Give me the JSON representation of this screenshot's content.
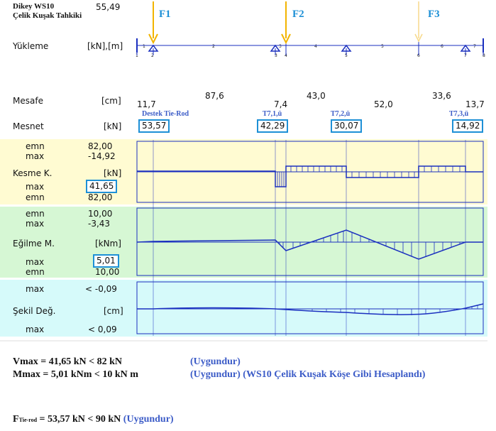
{
  "header": {
    "title_line1": "Dikey WS10",
    "title_line2": "Çelik Kuşak Tahkiki",
    "top_value": "55,49"
  },
  "loads": {
    "row_label": "Yükleme",
    "units": "[kN],[m]",
    "f1": "F1",
    "f2": "F2",
    "f3": "F3",
    "node_numbers": [
      "1",
      "2",
      "3",
      "4",
      "5",
      "6",
      "7",
      "8"
    ],
    "span_numbers": [
      "1",
      "2",
      "3",
      "4",
      "5",
      "6",
      "7"
    ]
  },
  "distances": {
    "row_label": "Mesafe",
    "units": "[cm]",
    "values": [
      "11,7",
      "87,6",
      "7,4",
      "43,0",
      "52,0",
      "33,6",
      "13,7"
    ]
  },
  "supports": {
    "row_label": "Mesnet",
    "units": "[kN]",
    "captions": [
      "Destek Tie-Rod",
      "T7,1,ü",
      "T7,2,ü",
      "T7,3,ü"
    ],
    "values": [
      "53,57",
      "42,29",
      "30,07",
      "14,92"
    ]
  },
  "shear": {
    "label": "Kesme K.",
    "units": "[kN]",
    "r1_label": "emn",
    "r1_value": "82,00",
    "r2_label": "max",
    "r2_value": "-14,92",
    "r3_label": "max",
    "r3_value": "41,65",
    "r4_label": "emn",
    "r4_value": "82,00"
  },
  "moment": {
    "label": "Eğilme M.",
    "units": "[kNm]",
    "r1_label": "emn",
    "r1_value": "10,00",
    "r2_label": "max",
    "r2_value": "-3,43",
    "r3_label": "max",
    "r3_value": "5,01",
    "r4_label": "emn",
    "r4_value": "10,00"
  },
  "deflection": {
    "label": "Şekil Değ.",
    "units": "[cm]",
    "r1_label": "max",
    "r1_value": "< -0,09",
    "r2_label": "max",
    "r2_value": "< 0,09"
  },
  "summary": {
    "v_line": "Vmax   = 41,65 kN     < 82 kN",
    "v_ok": "(Uygundur)",
    "m_line": "Mmax  = 5,01   kNm   <  10 kN m",
    "m_ok": "(Uygundur) (WS10 Çelik Kuşak Köşe Gibi Hesaplandı)",
    "f_main": "F",
    "f_sub": "Tie-rod",
    "f_line": "= 53,57 kN < 90 kN",
    "f_ok": "(Uygundur)"
  },
  "colors": {
    "shear_bg": "#fffbd2",
    "moment_bg": "#d6f7d4",
    "deflection_bg": "#d6fafa",
    "diagram_line": "#1a2fbf",
    "load_arrow": "#f2b400",
    "highlight_box": "#1e90d6",
    "note_text": "#3b5bc7"
  }
}
